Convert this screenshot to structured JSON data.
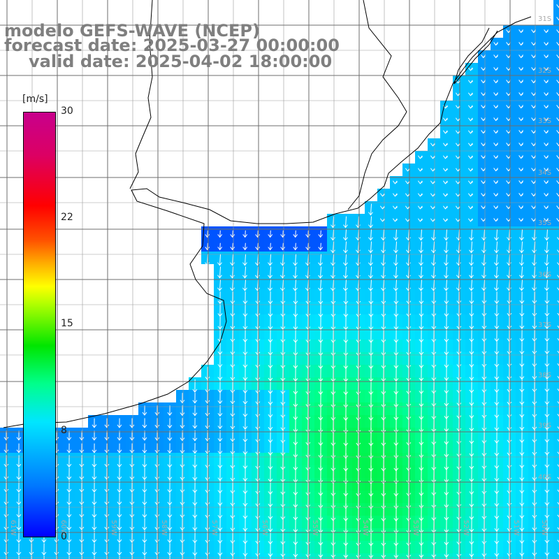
{
  "title": {
    "line1": "modelo GEFS-WAVE (NCEP)",
    "line2": "forecast date: 2025-03-27 00:00:00",
    "line3": "valid date: 2025-04-02 18:00:00"
  },
  "colorbar": {
    "unit": "[m/s]",
    "ticks": [
      "30",
      "22",
      "15",
      "8",
      "0"
    ],
    "tick_values": [
      30,
      22,
      15,
      8,
      0
    ],
    "colors": [
      "#0000ff",
      "#0078ff",
      "#00e6ff",
      "#00ff8c",
      "#00e600",
      "#b4ff00",
      "#ffff00",
      "#ffb400",
      "#ff5000",
      "#ff0000",
      "#dc0064",
      "#c8008c"
    ]
  },
  "lat_labels": [
    "31S",
    "32S",
    "33S",
    "34S",
    "35S",
    "36S",
    "37S",
    "38S",
    "39S",
    "40S"
  ],
  "lon_labels": [
    "61W",
    "60W",
    "59W",
    "58W",
    "57W",
    "56W",
    "55W",
    "54W",
    "53W",
    "52W",
    "51W",
    "50W"
  ],
  "colors": {
    "land": "#ffffff",
    "grid": "#6e6e6e",
    "coast": "#000000",
    "arrow": "#ffffff",
    "title": "#7f7f7f"
  }
}
